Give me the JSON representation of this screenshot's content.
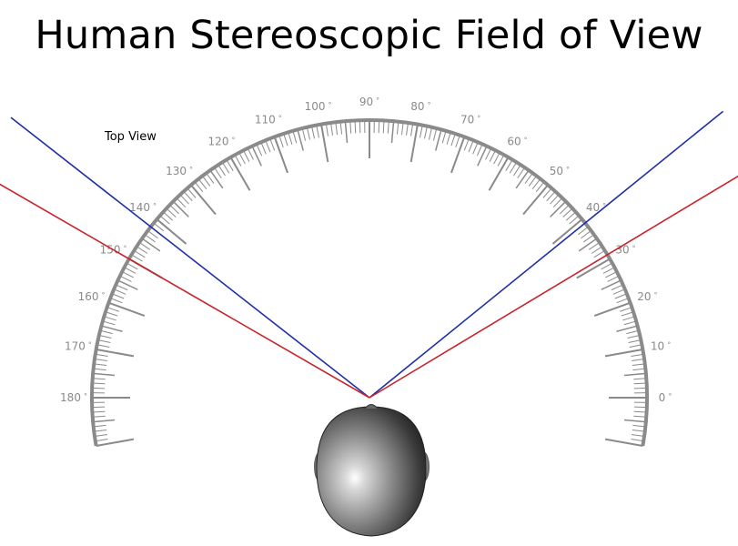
{
  "title": "Human Stereoscopic Field of View",
  "subtitle": "Top View",
  "scale": {
    "labels": [
      {
        "deg": 0,
        "text": "0"
      },
      {
        "deg": 10,
        "text": "10"
      },
      {
        "deg": 20,
        "text": "20"
      },
      {
        "deg": 30,
        "text": "30"
      },
      {
        "deg": 40,
        "text": "40"
      },
      {
        "deg": 50,
        "text": "50"
      },
      {
        "deg": 60,
        "text": "60"
      },
      {
        "deg": 70,
        "text": "70"
      },
      {
        "deg": 80,
        "text": "80"
      },
      {
        "deg": 90,
        "text": "90"
      },
      {
        "deg": 100,
        "text": "100"
      },
      {
        "deg": 110,
        "text": "110"
      },
      {
        "deg": 120,
        "text": "120"
      },
      {
        "deg": 130,
        "text": "130"
      },
      {
        "deg": 140,
        "text": "140"
      },
      {
        "deg": 150,
        "text": "150"
      },
      {
        "deg": 160,
        "text": "160"
      },
      {
        "deg": 170,
        "text": "170"
      },
      {
        "deg": 180,
        "text": "180"
      }
    ],
    "degree_symbol": "°",
    "range_deg": [
      -10,
      190
    ],
    "tick_step_deg": 1,
    "color": "#8a8a8a"
  },
  "lines": [
    {
      "name": "blue-right",
      "color": "#1f2fa8",
      "angle_deg": 39
    },
    {
      "name": "blue-left",
      "color": "#1f2fa8",
      "angle_deg": 142
    },
    {
      "name": "red-right",
      "color": "#c8242a",
      "angle_deg": 31
    },
    {
      "name": "red-left",
      "color": "#c8242a",
      "angle_deg": 150
    }
  ]
}
